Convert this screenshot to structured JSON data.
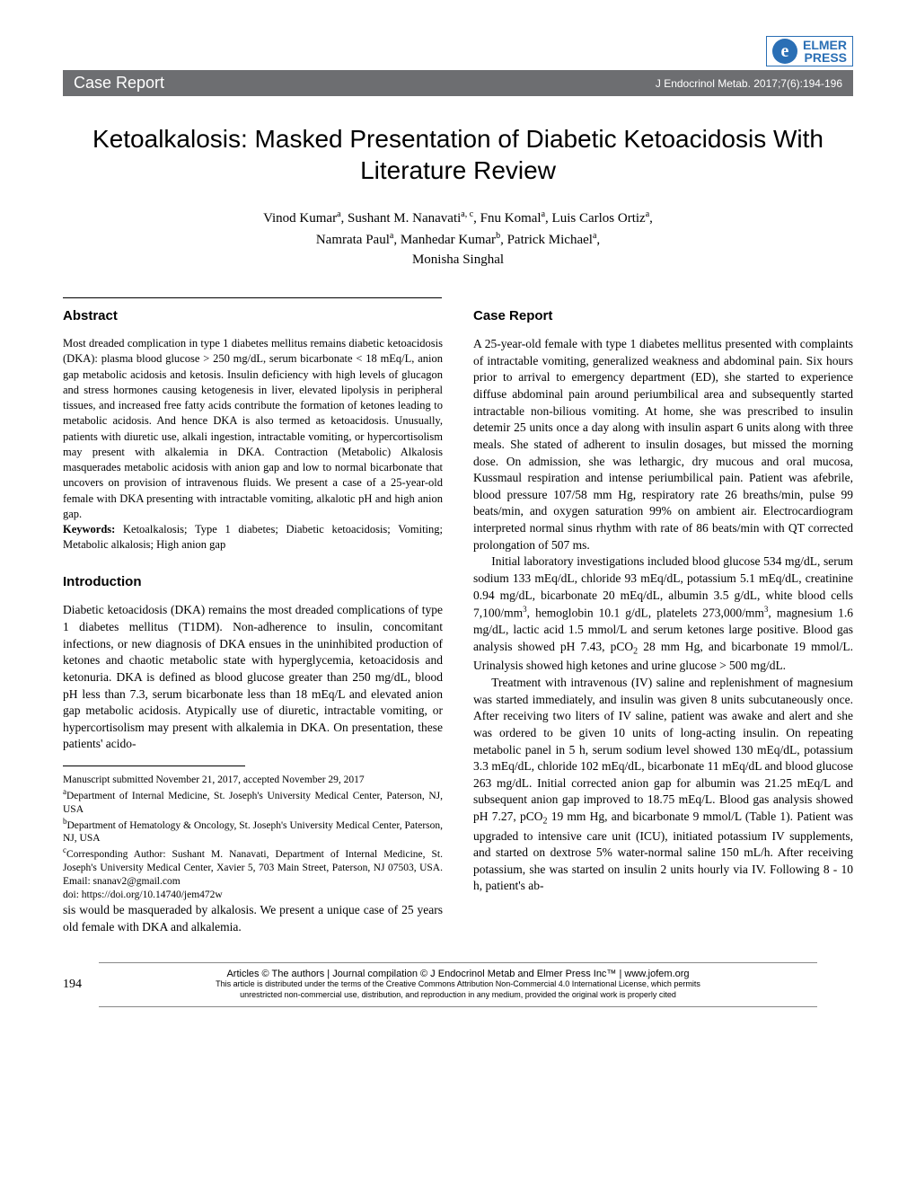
{
  "logo": {
    "letter": "e",
    "line1": "ELMER",
    "line2": "PRESS"
  },
  "banner": {
    "left": "Case Report",
    "right": "J Endocrinol Metab. 2017;7(6):194-196"
  },
  "title": "Ketoalkalosis: Masked Presentation of Diabetic Ketoacidosis With Literature Review",
  "authors_html": "Vinod Kumar<sup>a</sup>, Sushant M. Nanavati<sup>a, c</sup>, Fnu Komal<sup>a</sup>, Luis Carlos Ortiz<sup>a</sup>,<br>Namrata Paul<sup>a</sup>, Manhedar Kumar<sup>b</sup>, Patrick Michael<sup>a</sup>,<br>Monisha Singhal",
  "head_abstract": "Abstract",
  "abstract": "Most dreaded complication in type 1 diabetes mellitus remains diabetic ketoacidosis (DKA): plasma blood glucose > 250 mg/dL, serum bicarbonate < 18 mEq/L, anion gap metabolic acidosis and ketosis. Insulin deficiency with high levels of glucagon and stress hormones causing ketogenesis in liver, elevated lipolysis in peripheral tissues, and increased free fatty acids contribute the formation of ketones leading to metabolic acidosis. And hence DKA is also termed as ketoacidosis. Unusually, patients with diuretic use, alkali ingestion, intractable vomiting, or hypercortisolism may present with alkalemia in DKA. Contraction (Metabolic) Alkalosis masquerades metabolic acidosis with anion gap and low to normal bicarbonate that uncovers on provision of intravenous fluids. We present a case of a 25-year-old female with DKA presenting with intractable vomiting, alkalotic pH and high anion gap.",
  "keywords_label": "Keywords:",
  "keywords": " Ketoalkalosis; Type 1 diabetes; Diabetic ketoacidosis; Vomiting; Metabolic alkalosis; High anion gap",
  "head_intro": "Introduction",
  "intro": "Diabetic ketoacidosis (DKA) remains the most dreaded complications of type 1 diabetes mellitus (T1DM). Non-adherence to insulin, concomitant infections, or new diagnosis of DKA ensues in the uninhibited production of ketones and chaotic metabolic state with hyperglycemia, ketoacidosis and ketonuria. DKA is defined as blood glucose greater than 250 mg/dL, blood pH less than 7.3, serum bicarbonate less than 18 mEq/L and elevated anion gap metabolic acidosis. Atypically use of diuretic, intractable vomiting, or hypercortisolism may present with alkalemia in DKA. On presentation, these patients' acido",
  "manuscript_dates": "Manuscript submitted November 21, 2017, accepted November 29, 2017",
  "aff_a": "Department of Internal Medicine, St. Joseph's University Medical Center, Paterson, NJ, USA",
  "aff_b": "Department of Hematology & Oncology, St. Joseph's University Medical Center, Paterson, NJ, USA",
  "aff_c": "Corresponding Author: Sushant M. Nanavati, Department of Internal Medicine, St. Joseph's University Medical Center, Xavier 5, 703 Main Street, Paterson, NJ 07503, USA. Email: snanav2@gmail.com",
  "doi": "doi: https://doi.org/10.14740/jem472w",
  "col2_lead": "sis would be masqueraded by alkalosis. We present a unique case of 25 years old female with DKA and alkalemia.",
  "head_case": "Case Report",
  "case_p1": "A 25-year-old female with type 1 diabetes mellitus presented with complaints of intractable vomiting, generalized weakness and abdominal pain. Six hours prior to arrival to emergency department (ED), she started to experience diffuse abdominal pain around periumbilical area and subsequently started intractable non-bilious vomiting. At home, she was prescribed to insulin detemir 25 units once a day along with insulin aspart 6 units along with three meals. She stated of adherent to insulin dosages, but missed the morning dose. On admission, she was lethargic, dry mucous and oral mucosa, Kussmaul respiration and intense periumbilical pain. Patient was afebrile, blood pressure 107/58 mm Hg, respiratory rate 26 breaths/min, pulse 99 beats/min, and oxygen saturation 99% on ambient air. Electrocardiogram interpreted normal sinus rhythm with rate of 86 beats/min with QT corrected prolongation of 507 ms.",
  "case_p2_html": "Initial laboratory investigations included blood glucose 534 mg/dL, serum sodium 133 mEq/dL, chloride 93 mEq/dL, potassium 5.1 mEq/dL, creatinine 0.94 mg/dL, bicarbonate 20 mEq/dL, albumin 3.5 g/dL, white blood cells 7,100/mm<span class=\"sup3\">3</span>, hemoglobin 10.1 g/dL, platelets 273,000/mm<span class=\"sup3\">3</span>, magnesium 1.6 mg/dL, lactic acid 1.5 mmol/L and serum ketones large positive. Blood gas analysis showed pH 7.43, pCO<span class=\"sub\">2</span> 28 mm Hg, and bicarbonate 19 mmol/L. Urinalysis showed high ketones and urine glucose > 500 mg/dL.",
  "case_p3_html": "Treatment with intravenous (IV) saline and replenishment of magnesium was started immediately, and insulin was given 8 units subcutaneously once. After receiving two liters of IV saline, patient was awake and alert and she was ordered to be given 10 units of long-acting insulin. On repeating metabolic panel in 5 h, serum sodium level showed 130 mEq/dL, potassium 3.3 mEq/dL, chloride 102 mEq/dL, bicarbonate 11 mEq/dL and blood glucose 263 mg/dL. Initial corrected anion gap for albumin was 21.25 mEq/L and subsequent anion gap improved to 18.75 mEq/L. Blood gas analysis showed pH 7.27, pCO<span class=\"sub\">2</span> 19 mm Hg, and bicarbonate 9 mmol/L (Table 1). Patient was upgraded to intensive care unit (ICU), initiated potassium IV supplements, and started on dextrose 5% water-normal saline 150 mL/h. After receiving potassium, she was started on insulin 2 units hourly via IV. Following 8 - 10 h, patient's ab-",
  "footer": {
    "line1": "Articles © The authors   |   Journal compilation © J Endocrinol Metab and Elmer Press Inc™   |   www.jofem.org",
    "line2": "This article is distributed under the terms of the Creative Commons Attribution Non-Commercial 4.0 International License, which permits",
    "line3": "unrestricted non-commercial use, distribution, and reproduction in any medium, provided the original work is properly cited",
    "page_no": "194"
  }
}
